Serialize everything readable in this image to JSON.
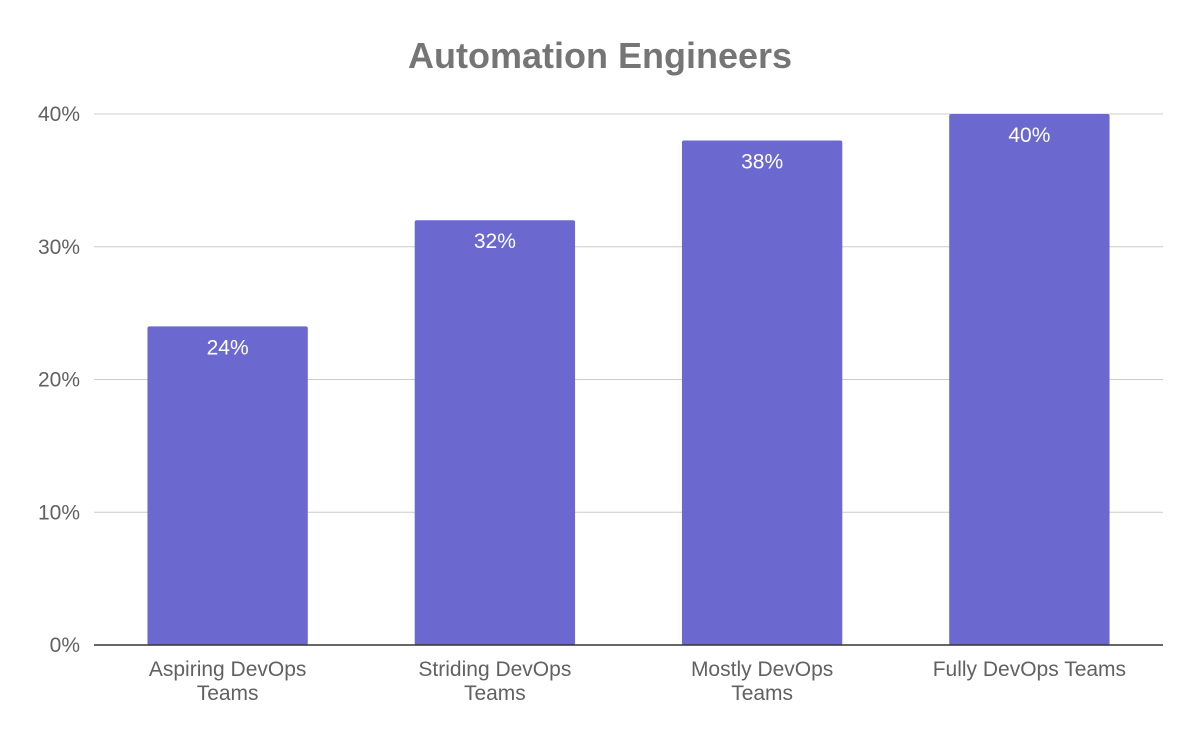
{
  "chart_data": {
    "type": "bar",
    "title": "Automation Engineers",
    "xlabel": "",
    "ylabel": "",
    "categories": [
      [
        "Aspiring DevOps",
        "Teams"
      ],
      [
        "Striding DevOps",
        "Teams"
      ],
      [
        "Mostly DevOps",
        "Teams"
      ],
      [
        "Fully DevOps Teams"
      ]
    ],
    "values": [
      24,
      32,
      38,
      40
    ],
    "data_labels": [
      "24%",
      "32%",
      "38%",
      "40%"
    ],
    "ylim": [
      0,
      40
    ],
    "y_ticks": [
      0,
      10,
      20,
      30,
      40
    ],
    "y_tick_labels": [
      "0%",
      "10%",
      "20%",
      "30%",
      "40%"
    ],
    "grid": true,
    "legend": "none",
    "colors": {
      "bar": "#6b69d0",
      "title": "#757575",
      "grid": "#cccccc",
      "axis": "#333333",
      "tick_text": "#616161",
      "data_label_text": "#ffffff"
    }
  }
}
